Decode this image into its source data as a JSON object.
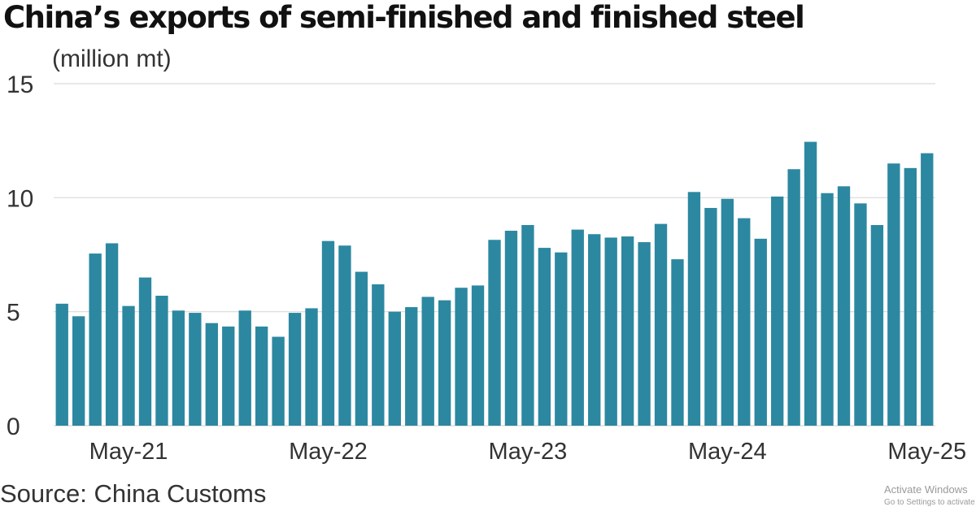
{
  "chart_data": {
    "type": "bar",
    "title": "China’s exports of semi-finished and finished steel",
    "ylabel": "(million mt)",
    "xlabel": "",
    "source": "Source: China Customs",
    "ylim": [
      0,
      15
    ],
    "yticks": [
      0,
      5,
      10,
      15
    ],
    "grid": true,
    "bar_color": "#2c88a0",
    "x": [
      "Jan-21",
      "Feb-21",
      "Mar-21",
      "Apr-21",
      "May-21",
      "Jun-21",
      "Jul-21",
      "Aug-21",
      "Sep-21",
      "Oct-21",
      "Nov-21",
      "Dec-21",
      "Jan-22",
      "Feb-22",
      "Mar-22",
      "Apr-22",
      "May-22",
      "Jun-22",
      "Jul-22",
      "Aug-22",
      "Sep-22",
      "Oct-22",
      "Nov-22",
      "Dec-22",
      "Jan-23",
      "Feb-23",
      "Mar-23",
      "Apr-23",
      "May-23",
      "Jun-23",
      "Jul-23",
      "Aug-23",
      "Sep-23",
      "Oct-23",
      "Nov-23",
      "Dec-23",
      "Jan-24",
      "Feb-24",
      "Mar-24",
      "Apr-24",
      "May-24",
      "Jun-24",
      "Jul-24",
      "Aug-24",
      "Sep-24",
      "Oct-24",
      "Nov-24",
      "Dec-24",
      "Jan-25",
      "Feb-25",
      "Mar-25",
      "Apr-25",
      "May-25"
    ],
    "values": [
      5.35,
      4.8,
      7.55,
      8.0,
      5.25,
      6.5,
      5.7,
      5.05,
      4.95,
      4.5,
      4.35,
      5.05,
      4.35,
      3.9,
      4.95,
      5.15,
      8.1,
      7.9,
      6.75,
      6.2,
      5.0,
      5.2,
      5.65,
      5.5,
      6.05,
      6.15,
      8.15,
      8.55,
      8.8,
      7.8,
      7.6,
      8.6,
      8.4,
      8.25,
      8.3,
      8.05,
      8.85,
      7.3,
      10.25,
      9.55,
      9.95,
      9.1,
      8.2,
      10.05,
      11.25,
      12.45,
      10.2,
      10.5,
      9.75,
      8.8,
      11.5,
      11.3,
      11.95
    ],
    "xtick_labels": [
      "May-21",
      "May-22",
      "May-23",
      "May-24",
      "May-25"
    ]
  },
  "watermark": {
    "line1": "Activate Windows",
    "line2": "Go to Settings to activate Windows."
  }
}
